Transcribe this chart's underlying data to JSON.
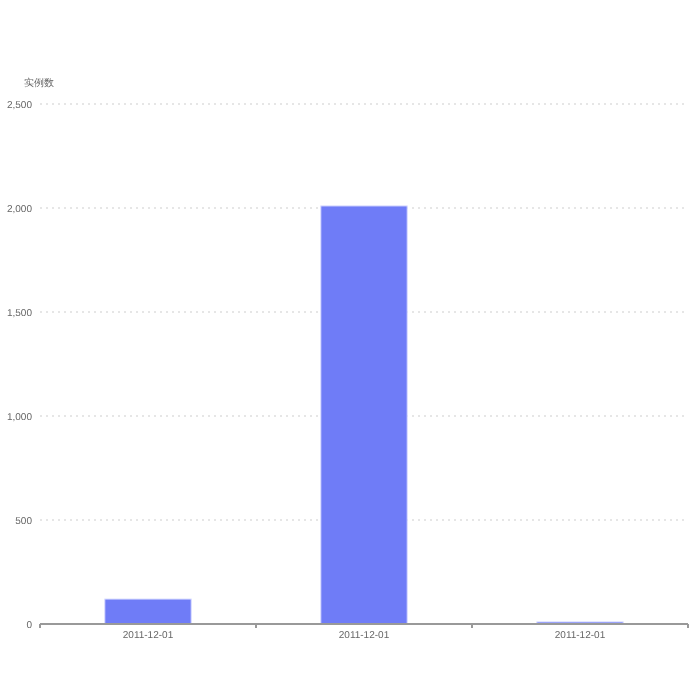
{
  "chart_data": {
    "type": "bar",
    "ylabel": "实例数",
    "categories": [
      "2011-12-01",
      "2011-12-01",
      "2011-12-01"
    ],
    "values": [
      120,
      2010,
      10
    ],
    "color": "#6f7cf7",
    "ylim": [
      0,
      2500
    ],
    "yticks": [
      {
        "value": 0,
        "label": "0"
      },
      {
        "value": 500,
        "label": "500"
      },
      {
        "value": 1000,
        "label": "1,000"
      },
      {
        "value": 1500,
        "label": "1,500"
      },
      {
        "value": 2000,
        "label": "2,000"
      },
      {
        "value": 2500,
        "label": "2,500"
      }
    ],
    "grid": "y"
  }
}
